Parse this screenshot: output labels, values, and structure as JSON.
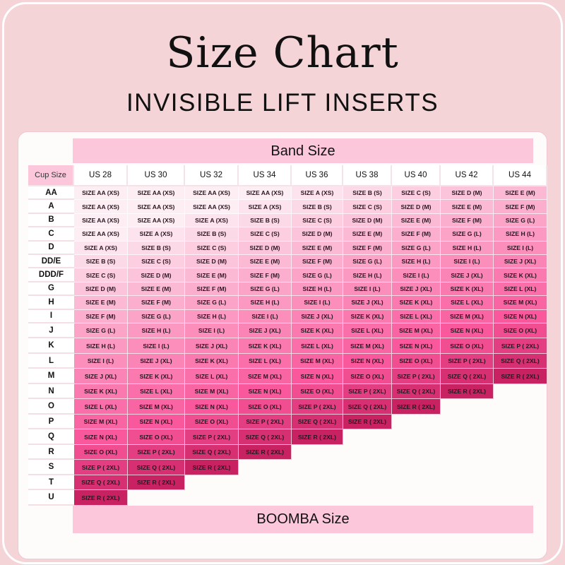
{
  "title": "Size Chart",
  "subtitle": "INVISIBLE LIFT INSERTS",
  "band_label": "Band Size",
  "footer_label": "BOOMBA Size",
  "cup_header": "Cup Size",
  "bands": [
    "US 28",
    "US 30",
    "US 32",
    "US 34",
    "US 36",
    "US 38",
    "US 40",
    "US 42",
    "US 44"
  ],
  "sizes": [
    "SIZE AA (XS)",
    "SIZE A (XS)",
    "SIZE B (S)",
    "SIZE C (S)",
    "SIZE D (M)",
    "SIZE E (M)",
    "SIZE F (M)",
    "SIZE G (L)",
    "SIZE H (L)",
    "SIZE I (L)",
    "SIZE J (XL)",
    "SIZE K (XL)",
    "SIZE L (XL)",
    "SIZE M (XL)",
    "SIZE N (XL)",
    "SIZE O (XL)",
    "SIZE P ( 2XL)",
    "SIZE Q ( 2XL)",
    "SIZE R ( 2XL)"
  ],
  "rows": [
    {
      "cup": "AA",
      "cells": [
        "SIZE AA (XS)",
        "SIZE AA (XS)",
        "SIZE AA (XS)",
        "SIZE AA (XS)",
        "SIZE A (XS)",
        "SIZE B (S)",
        "SIZE C (S)",
        "SIZE D (M)",
        "SIZE E (M)"
      ]
    },
    {
      "cup": "A",
      "cells": [
        "SIZE AA (XS)",
        "SIZE AA (XS)",
        "SIZE AA (XS)",
        "SIZE A (XS)",
        "SIZE B (S)",
        "SIZE C (S)",
        "SIZE D (M)",
        "SIZE E (M)",
        "SIZE F (M)"
      ]
    },
    {
      "cup": "B",
      "cells": [
        "SIZE AA (XS)",
        "SIZE AA (XS)",
        "SIZE A (XS)",
        "SIZE B (S)",
        "SIZE C (S)",
        "SIZE D (M)",
        "SIZE E (M)",
        "SIZE F (M)",
        "SIZE G (L)"
      ]
    },
    {
      "cup": "C",
      "cells": [
        "SIZE AA (XS)",
        "SIZE A (XS)",
        "SIZE B (S)",
        "SIZE C (S)",
        "SIZE D (M)",
        "SIZE E (M)",
        "SIZE F (M)",
        "SIZE G (L)",
        "SIZE H (L)"
      ]
    },
    {
      "cup": "D",
      "cells": [
        "SIZE A (XS)",
        "SIZE B (S)",
        "SIZE C (S)",
        "SIZE D (M)",
        "SIZE E (M)",
        "SIZE F (M)",
        "SIZE G (L)",
        "SIZE H (L)",
        "SIZE I (L)"
      ]
    },
    {
      "cup": "DD/E",
      "cells": [
        "SIZE B (S)",
        "SIZE C (S)",
        "SIZE D (M)",
        "SIZE E (M)",
        "SIZE F (M)",
        "SIZE G (L)",
        "SIZE H (L)",
        "SIZE I (L)",
        "SIZE J (XL)"
      ]
    },
    {
      "cup": "DDD/F",
      "cells": [
        "SIZE C (S)",
        "SIZE D (M)",
        "SIZE E (M)",
        "SIZE F (M)",
        "SIZE G (L)",
        "SIZE H (L)",
        "SIZE I (L)",
        "SIZE J (XL)",
        "SIZE K (XL)"
      ]
    },
    {
      "cup": "G",
      "cells": [
        "SIZE D (M)",
        "SIZE E (M)",
        "SIZE F (M)",
        "SIZE G (L)",
        "SIZE H (L)",
        "SIZE I (L)",
        "SIZE J (XL)",
        "SIZE K (XL)",
        "SIZE L (XL)"
      ]
    },
    {
      "cup": "H",
      "cells": [
        "SIZE E (M)",
        "SIZE F (M)",
        "SIZE G (L)",
        "SIZE H (L)",
        "SIZE I (L)",
        "SIZE J (XL)",
        "SIZE K (XL)",
        "SIZE L (XL)",
        "SIZE M (XL)"
      ]
    },
    {
      "cup": "I",
      "cells": [
        "SIZE F (M)",
        "SIZE G (L)",
        "SIZE H (L)",
        "SIZE I (L)",
        "SIZE J (XL)",
        "SIZE K (XL)",
        "SIZE L (XL)",
        "SIZE M (XL)",
        "SIZE N (XL)"
      ]
    },
    {
      "cup": "J",
      "cells": [
        "SIZE G (L)",
        "SIZE H (L)",
        "SIZE I (L)",
        "SIZE J (XL)",
        "SIZE K (XL)",
        "SIZE L (XL)",
        "SIZE M (XL)",
        "SIZE N (XL)",
        "SIZE O (XL)"
      ]
    },
    {
      "cup": "K",
      "cells": [
        "SIZE H (L)",
        "SIZE I (L)",
        "SIZE J (XL)",
        "SIZE K (XL)",
        "SIZE L (XL)",
        "SIZE M (XL)",
        "SIZE N (XL)",
        "SIZE O (XL)",
        "SIZE P ( 2XL)"
      ]
    },
    {
      "cup": "L",
      "cells": [
        "SIZE I (L)",
        "SIZE J (XL)",
        "SIZE K (XL)",
        "SIZE L (XL)",
        "SIZE M (XL)",
        "SIZE N (XL)",
        "SIZE O (XL)",
        "SIZE P ( 2XL)",
        "SIZE Q ( 2XL)"
      ]
    },
    {
      "cup": "M",
      "cells": [
        "SIZE J (XL)",
        "SIZE K (XL)",
        "SIZE L (XL)",
        "SIZE M (XL)",
        "SIZE N (XL)",
        "SIZE O (XL)",
        "SIZE P ( 2XL)",
        "SIZE Q ( 2XL)",
        "SIZE R ( 2XL)"
      ]
    },
    {
      "cup": "N",
      "cells": [
        "SIZE K (XL)",
        "SIZE L (XL)",
        "SIZE M (XL)",
        "SIZE N (XL)",
        "SIZE O (XL)",
        "SIZE P ( 2XL)",
        "SIZE Q ( 2XL)",
        "SIZE R ( 2XL)"
      ]
    },
    {
      "cup": "O",
      "cells": [
        "SIZE L (XL)",
        "SIZE M (XL)",
        "SIZE N (XL)",
        "SIZE O (XL)",
        "SIZE P ( 2XL)",
        "SIZE Q ( 2XL)",
        "SIZE R ( 2XL)"
      ]
    },
    {
      "cup": "P",
      "cells": [
        "SIZE M (XL)",
        "SIZE N (XL)",
        "SIZE O (XL)",
        "SIZE P ( 2XL)",
        "SIZE Q ( 2XL)",
        "SIZE R ( 2XL)"
      ]
    },
    {
      "cup": "Q",
      "cells": [
        "SIZE N (XL)",
        "SIZE O (XL)",
        "SIZE P ( 2XL)",
        "SIZE Q ( 2XL)",
        "SIZE R ( 2XL)"
      ]
    },
    {
      "cup": "R",
      "cells": [
        "SIZE O (XL)",
        "SIZE P ( 2XL)",
        "SIZE Q ( 2XL)",
        "SIZE R ( 2XL)"
      ]
    },
    {
      "cup": "S",
      "cells": [
        "SIZE P ( 2XL)",
        "SIZE Q ( 2XL)",
        "SIZE R ( 2XL)"
      ]
    },
    {
      "cup": "T",
      "cells": [
        "SIZE Q ( 2XL)",
        "SIZE R ( 2XL)"
      ]
    },
    {
      "cup": "U",
      "cells": [
        "SIZE R ( 2XL)"
      ]
    }
  ],
  "colors": {
    "background": "#f4d4d6",
    "header_band": "#fcc7db",
    "lightest_cell": "#fdeef3",
    "mid_cell": "#f9559a",
    "darkest_cell": "#c92263"
  }
}
